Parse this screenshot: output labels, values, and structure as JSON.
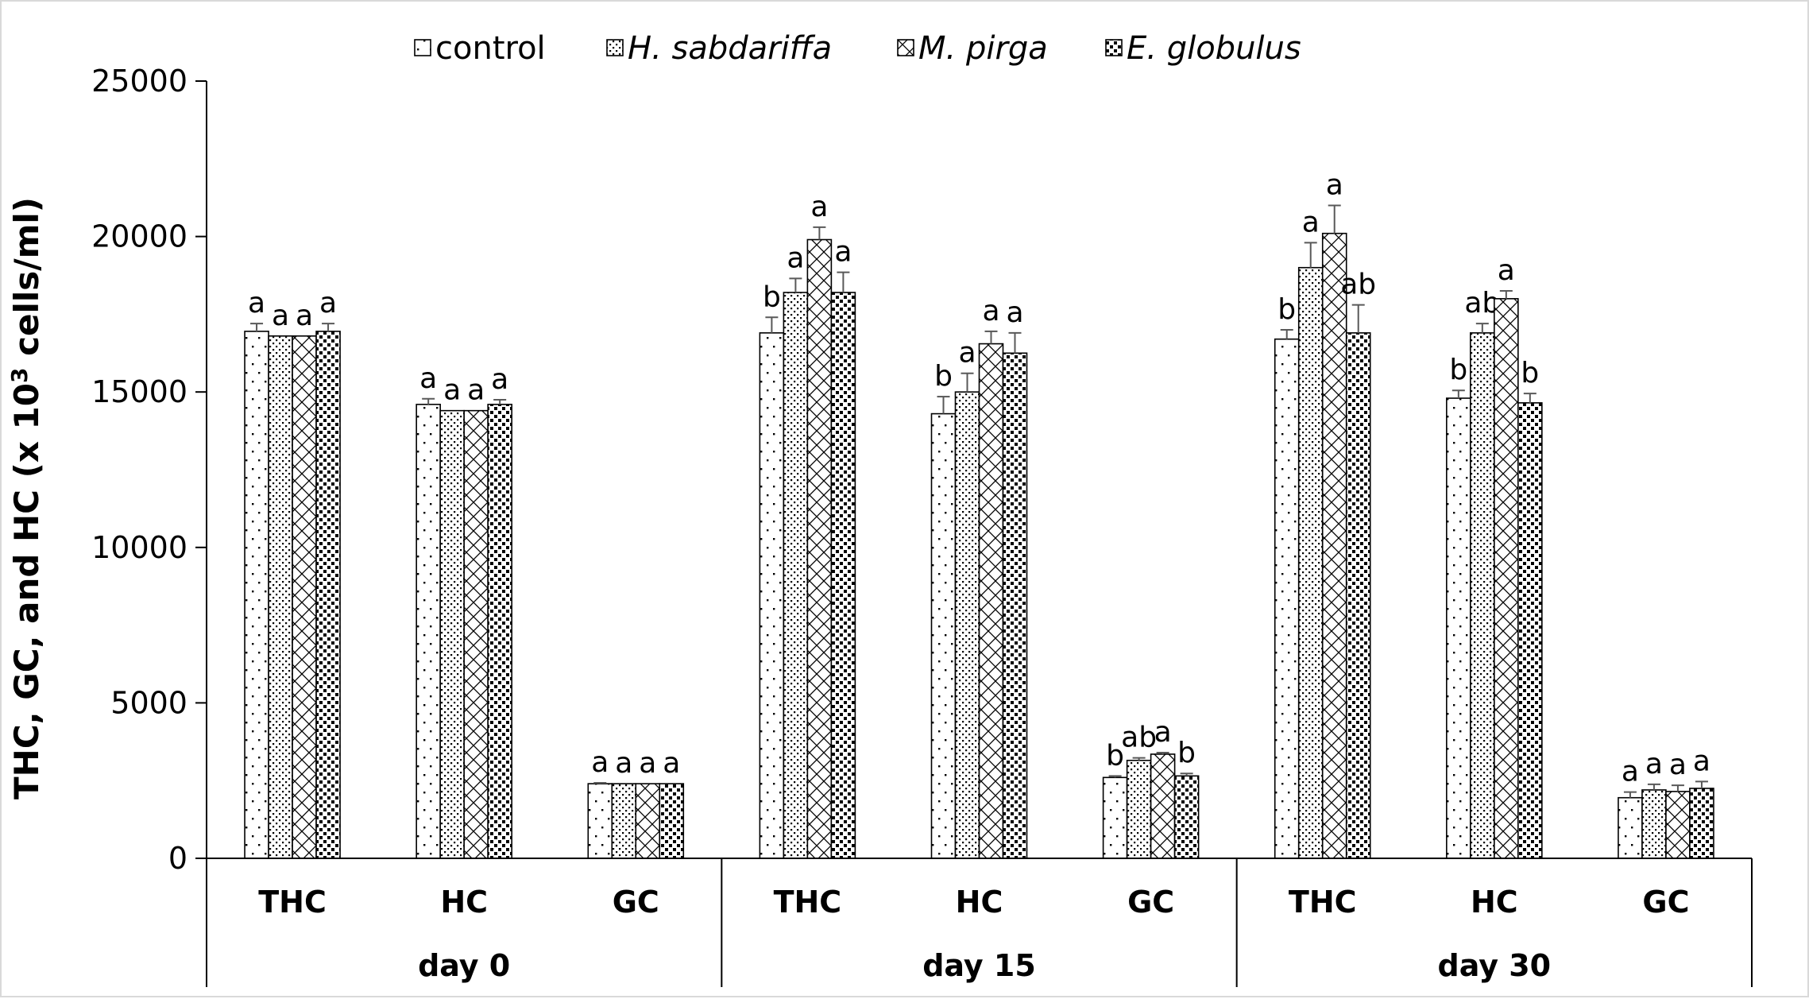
{
  "chart_data": {
    "type": "bar",
    "title": "",
    "ylabel": "THC, GC, and HC (x 10³ cells/ml)",
    "ylabel_main": "THC, GC, and HC (x 10",
    "ylabel_sup": "3",
    "ylabel_tail": " cells/ml)",
    "xlabel": "",
    "ylim": [
      0,
      25000
    ],
    "yticks": [
      0,
      5000,
      10000,
      15000,
      20000,
      25000
    ],
    "ytick_labels": [
      "0",
      "5000",
      "10000",
      "15000",
      "20000",
      "25000"
    ],
    "grid": false,
    "legend_position": "top",
    "groups": [
      "day 0",
      "day 15",
      "day 30"
    ],
    "categories": [
      "THC",
      "HC",
      "GC",
      "THC",
      "HC",
      "GC",
      "THC",
      "HC",
      "GC"
    ],
    "category_group": [
      0,
      0,
      0,
      1,
      1,
      1,
      2,
      2,
      2
    ],
    "series": [
      {
        "name": "control",
        "italic": false,
        "pattern": "pat-control",
        "values": [
          16950,
          14600,
          2400,
          16900,
          14300,
          2600,
          16700,
          14800,
          1950
        ],
        "errors": [
          250,
          180,
          30,
          500,
          550,
          50,
          300,
          250,
          180
        ],
        "letters": [
          "a",
          "a",
          "a",
          "b",
          "b",
          "b",
          "b",
          "b",
          "a"
        ]
      },
      {
        "name": "H. sabdariffa",
        "italic": true,
        "pattern": "pat-sabdariffa",
        "values": [
          16800,
          14400,
          2400,
          18200,
          15000,
          3150,
          19000,
          16900,
          2200
        ],
        "errors": [
          0,
          0,
          0,
          450,
          600,
          80,
          800,
          300,
          180
        ],
        "letters": [
          "a",
          "a",
          "a",
          "a",
          "a",
          "ab",
          "a",
          "ab",
          "a"
        ]
      },
      {
        "name": "M. pirga",
        "italic": true,
        "pattern": "pat-pirga",
        "values": [
          16800,
          14400,
          2400,
          19900,
          16550,
          3350,
          20100,
          18000,
          2150
        ],
        "errors": [
          0,
          0,
          0,
          400,
          400,
          50,
          900,
          250,
          200
        ],
        "letters": [
          "a",
          "a",
          "a",
          "a",
          "a",
          "a",
          "a",
          "a",
          "a"
        ]
      },
      {
        "name": "E. globulus",
        "italic": true,
        "pattern": "pat-globulus",
        "values": [
          16950,
          14600,
          2400,
          18200,
          16250,
          2650,
          16900,
          14650,
          2250
        ],
        "errors": [
          250,
          150,
          0,
          650,
          650,
          80,
          900,
          300,
          220
        ],
        "letters": [
          "a",
          "a",
          "a",
          "a",
          "a",
          "b",
          "ab",
          "b",
          "a"
        ]
      }
    ]
  }
}
